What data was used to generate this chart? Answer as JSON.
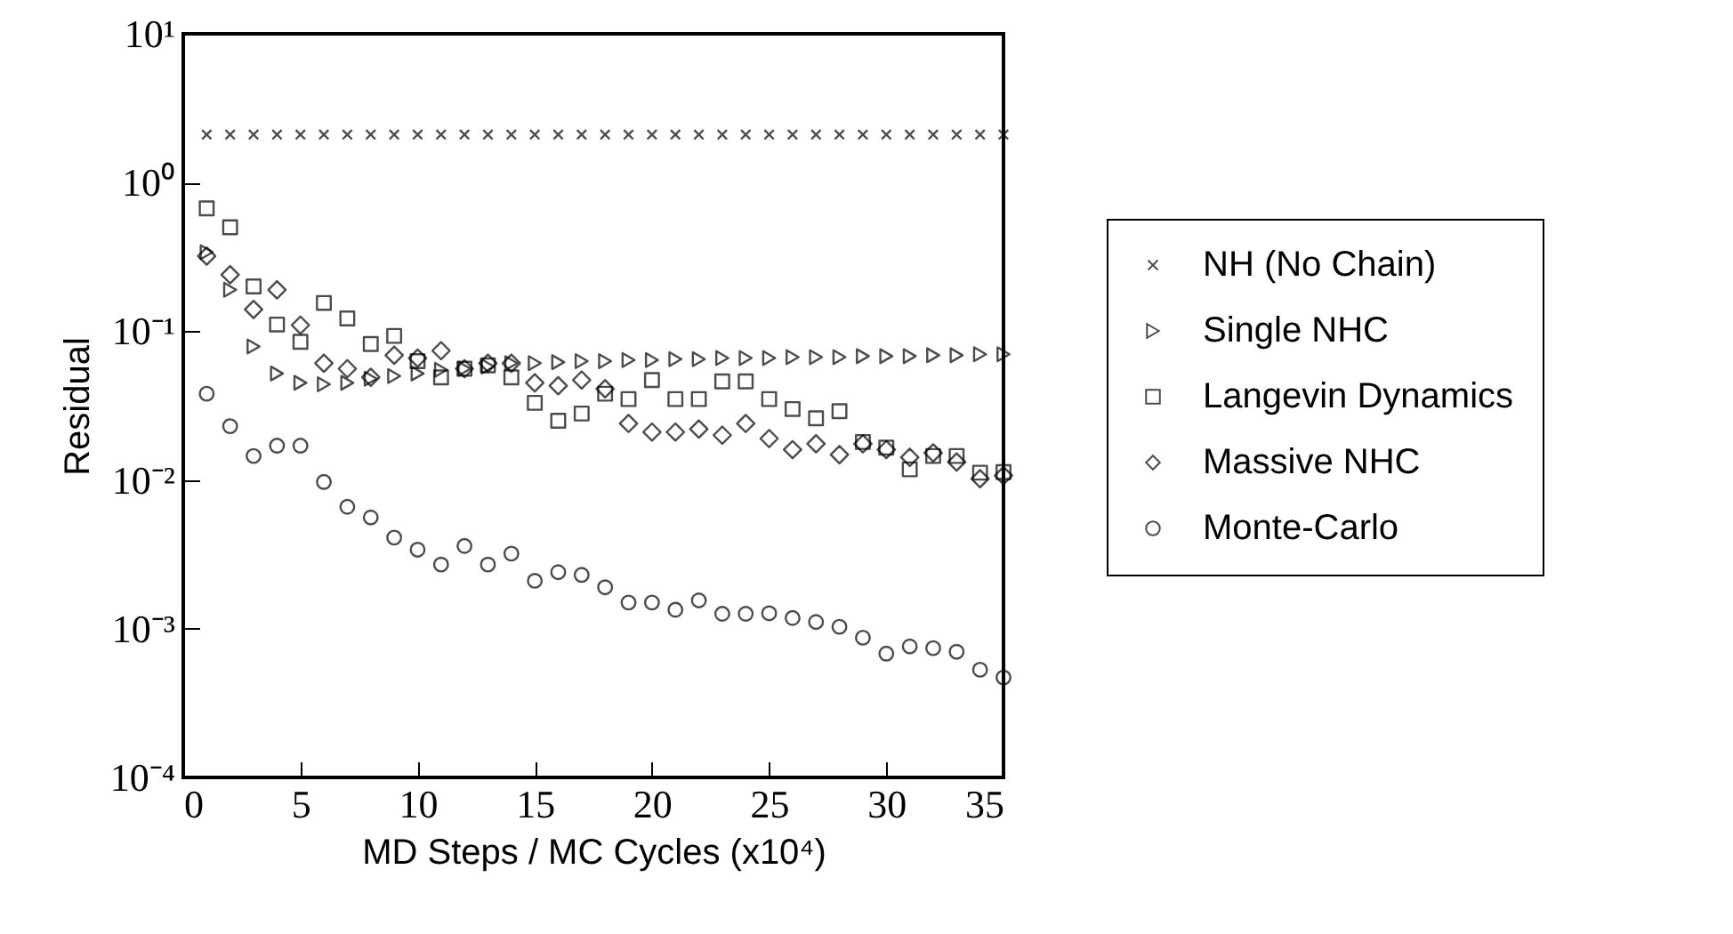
{
  "chart_data": {
    "type": "scatter",
    "xlabel": "MD Steps / MC Cycles (x10⁴)",
    "ylabel": "Residual",
    "log": "y",
    "xlim": [
      0,
      35
    ],
    "xticks": [
      0,
      5,
      10,
      15,
      20,
      25,
      30,
      35
    ],
    "ylim": [
      0.0001,
      10
    ],
    "yticks": [
      {
        "value": 0.0001,
        "label": "10⁻⁴"
      },
      {
        "value": 0.001,
        "label": "10⁻³"
      },
      {
        "value": 0.01,
        "label": "10⁻²"
      },
      {
        "value": 0.1,
        "label": "10⁻¹"
      },
      {
        "value": 1,
        "label": "10⁰"
      },
      {
        "value": 10,
        "label": "10¹"
      }
    ],
    "legend": "right",
    "grid": false,
    "x": [
      1,
      2,
      3,
      4,
      5,
      6,
      7,
      8,
      9,
      10,
      11,
      12,
      13,
      14,
      15,
      16,
      17,
      18,
      19,
      20,
      21,
      22,
      23,
      24,
      25,
      26,
      27,
      28,
      29,
      30,
      31,
      32,
      33,
      34,
      35
    ],
    "series": [
      {
        "name": "NH (No Chain)",
        "color": "#000000",
        "marker": "cross",
        "values": [
          2.1,
          2.1,
          2.1,
          2.1,
          2.1,
          2.1,
          2.1,
          2.1,
          2.1,
          2.1,
          2.1,
          2.1,
          2.1,
          2.1,
          2.1,
          2.1,
          2.1,
          2.1,
          2.1,
          2.1,
          2.1,
          2.1,
          2.1,
          2.1,
          2.1,
          2.1,
          2.1,
          2.1,
          2.1,
          2.1,
          2.1,
          2.1,
          2.1,
          2.1,
          2.1
        ]
      },
      {
        "name": "Single NHC",
        "color": "#000000",
        "marker": "triangle",
        "values": [
          0.34,
          0.19,
          0.079,
          0.052,
          0.045,
          0.044,
          0.045,
          0.048,
          0.05,
          0.052,
          0.055,
          0.056,
          0.058,
          0.061,
          0.061,
          0.062,
          0.063,
          0.063,
          0.064,
          0.064,
          0.065,
          0.065,
          0.066,
          0.066,
          0.066,
          0.067,
          0.067,
          0.067,
          0.068,
          0.068,
          0.068,
          0.069,
          0.069,
          0.07,
          0.07
        ]
      },
      {
        "name": "Langevin Dynamics",
        "color": "#000000",
        "marker": "square",
        "values": [
          0.67,
          0.5,
          0.2,
          0.111,
          0.085,
          0.155,
          0.122,
          0.082,
          0.093,
          0.063,
          0.049,
          0.056,
          0.059,
          0.049,
          0.033,
          0.025,
          0.028,
          0.038,
          0.035,
          0.047,
          0.035,
          0.035,
          0.046,
          0.046,
          0.035,
          0.03,
          0.026,
          0.029,
          0.018,
          0.0165,
          0.0118,
          0.0145,
          0.0145,
          0.0112,
          0.0113
        ]
      },
      {
        "name": "Massive NHC",
        "color": "#000000",
        "marker": "diamond",
        "values": [
          0.32,
          0.24,
          0.14,
          0.19,
          0.11,
          0.061,
          0.056,
          0.049,
          0.069,
          0.066,
          0.074,
          0.056,
          0.061,
          0.061,
          0.045,
          0.043,
          0.047,
          0.041,
          0.024,
          0.021,
          0.021,
          0.022,
          0.02,
          0.024,
          0.019,
          0.016,
          0.0175,
          0.0148,
          0.0175,
          0.016,
          0.0142,
          0.0152,
          0.0132,
          0.0102,
          0.0107
        ]
      },
      {
        "name": "Monte-Carlo",
        "color": "#000000",
        "marker": "circle",
        "values": [
          0.038,
          0.023,
          0.0145,
          0.017,
          0.017,
          0.0097,
          0.0066,
          0.0056,
          0.0041,
          0.0034,
          0.0027,
          0.0036,
          0.0027,
          0.0032,
          0.0021,
          0.0024,
          0.0023,
          0.0019,
          0.0015,
          0.0015,
          0.00134,
          0.00155,
          0.00126,
          0.00126,
          0.00127,
          0.00118,
          0.00111,
          0.00103,
          0.00087,
          0.00068,
          0.00076,
          0.00074,
          0.0007,
          0.00053,
          0.00047
        ]
      }
    ]
  }
}
